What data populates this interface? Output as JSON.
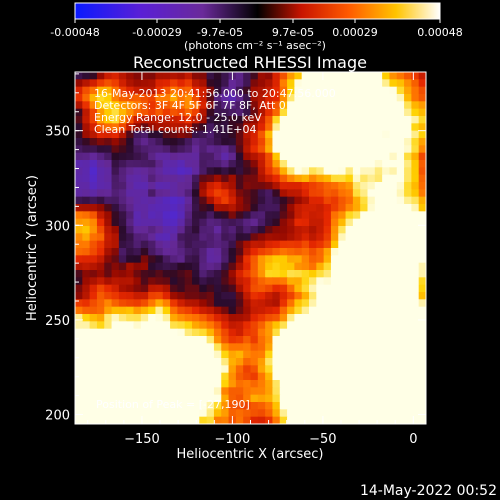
{
  "colorbar": {
    "ticks": [
      "-0.00048",
      "-0.00029",
      "-9.7e-05",
      "9.7e-05",
      "0.00029",
      "0.00048"
    ],
    "unit_label": "(photons cm⁻² s⁻¹ asec⁻²)"
  },
  "chart_data": {
    "type": "heatmap",
    "title": "Reconstructed RHESSI Image",
    "xlabel": "Heliocentric X (arcsec)",
    "ylabel": "Heliocentric Y (arcsec)",
    "xlim": [
      -187,
      7
    ],
    "ylim": [
      195,
      381
    ],
    "xticks": [
      -150,
      -100,
      -50,
      0
    ],
    "yticks": [
      200,
      250,
      300,
      350
    ],
    "colormap": "rainbow-to-hot (blue-purple-black-red-orange-yellow-white)",
    "color_range": [
      -0.00048,
      0.00048
    ],
    "annotations": {
      "time": "16-May-2013 20:41:56.000 to 20:47:56.000",
      "detectors": "Detectors: 3F 4F 5F 6F 7F 8F, Att 0",
      "energy": "Energy Range: 12.0 - 25.0 keV",
      "clean": "Clean     Total counts: 1.41E+04",
      "peak": "Position of Peak = [-27,190]"
    },
    "peak_position": [
      -27,
      190
    ]
  },
  "footer": {
    "date": "14-May-2022 00:52"
  }
}
